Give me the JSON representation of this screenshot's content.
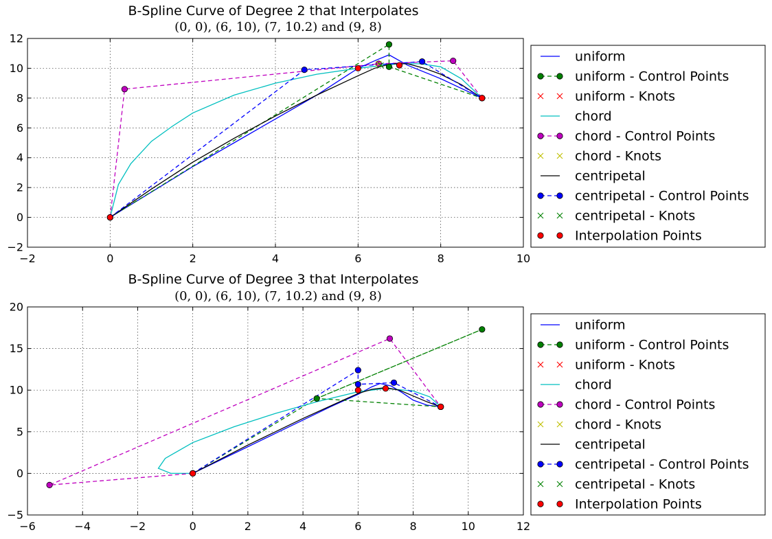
{
  "chart_data": [
    {
      "type": "line",
      "title": "B-Spline Curve of Degree 2 that Interpolates",
      "subtitle": "(0, 0), (6, 10), (7, 10.2) and (9, 8)",
      "xlabel": "",
      "ylabel": "",
      "xlim": [
        -2,
        10
      ],
      "ylim": [
        -2,
        12
      ],
      "xticks": [
        -2,
        0,
        2,
        4,
        6,
        8,
        10
      ],
      "yticks": [
        -2,
        0,
        2,
        4,
        6,
        8,
        10,
        12
      ],
      "grid": true,
      "legend_position": "outside-right",
      "series": [
        {
          "name": "uniform",
          "style": "line",
          "color": "#0000ff",
          "x": [
            0,
            1,
            2,
            3,
            4,
            5,
            6,
            6.4,
            6.75,
            7.2,
            8,
            9
          ],
          "y": [
            0,
            1.7,
            3.4,
            5.0,
            6.6,
            8.2,
            10.0,
            10.5,
            10.9,
            10.2,
            9.3,
            8.0
          ]
        },
        {
          "name": "uniform - Control Points",
          "style": "dashed-marker",
          "color": "#008000",
          "marker": "circle",
          "x": [
            0,
            6.75,
            6.75,
            9
          ],
          "y": [
            0,
            11.6,
            10.1,
            8.0
          ]
        },
        {
          "name": "uniform - Knots",
          "style": "marker",
          "color": "#ff0000",
          "marker": "x",
          "x": [],
          "y": []
        },
        {
          "name": "chord",
          "style": "line",
          "color": "#00bfbf",
          "x": [
            0,
            0.2,
            0.5,
            1,
            1.5,
            2,
            3,
            4,
            5,
            6,
            6.6,
            7,
            7.5,
            8,
            8.5,
            9
          ],
          "y": [
            0,
            2.2,
            3.6,
            5.1,
            6.1,
            7.0,
            8.2,
            9.0,
            9.6,
            10.0,
            10.2,
            10.3,
            10.3,
            10.1,
            9.3,
            8.0
          ]
        },
        {
          "name": "chord - Control Points",
          "style": "dashed-marker",
          "color": "#bf00bf",
          "marker": "circle",
          "x": [
            0,
            0.35,
            6.5,
            8.3,
            9
          ],
          "y": [
            0,
            8.6,
            10.3,
            10.5,
            8.0
          ]
        },
        {
          "name": "chord - Knots",
          "style": "marker",
          "color": "#bfbf00",
          "marker": "x",
          "x": [
            6.5
          ],
          "y": [
            10.3
          ]
        },
        {
          "name": "centripetal",
          "style": "line",
          "color": "#000000",
          "x": [
            0,
            1,
            2,
            3,
            4,
            5,
            6,
            6.4,
            6.8,
            7.2,
            7.6,
            8,
            8.5,
            9
          ],
          "y": [
            0,
            1.9,
            3.7,
            5.3,
            6.8,
            8.2,
            9.5,
            10.0,
            10.3,
            10.3,
            10.0,
            9.6,
            8.9,
            8.0
          ]
        },
        {
          "name": "centripetal - Control Points",
          "style": "dashed-marker",
          "color": "#0000ff",
          "marker": "circle",
          "x": [
            0,
            4.7,
            7.55,
            9
          ],
          "y": [
            0,
            9.9,
            10.45,
            8.0
          ]
        },
        {
          "name": "centripetal - Knots",
          "style": "marker",
          "color": "#008000",
          "marker": "x",
          "x": [
            6.55
          ],
          "y": [
            10.2
          ]
        },
        {
          "name": "Interpolation Points",
          "style": "marker",
          "color": "#ff0000",
          "marker": "circle",
          "x": [
            0,
            6,
            7,
            9
          ],
          "y": [
            0,
            10,
            10.2,
            8
          ]
        }
      ]
    },
    {
      "type": "line",
      "title": "B-Spline Curve of Degree 3 that Interpolates",
      "subtitle": "(0, 0), (6, 10), (7, 10.2) and (9, 8)",
      "xlabel": "",
      "ylabel": "",
      "xlim": [
        -6,
        12
      ],
      "ylim": [
        -5,
        20
      ],
      "xticks": [
        -6,
        -4,
        -2,
        0,
        2,
        4,
        6,
        8,
        10,
        12
      ],
      "yticks": [
        -5,
        0,
        5,
        10,
        15,
        20
      ],
      "grid": true,
      "legend_position": "outside-right",
      "series": [
        {
          "name": "uniform",
          "style": "line",
          "color": "#0000ff",
          "x": [
            0,
            1,
            2,
            3,
            4,
            5,
            6,
            6.5,
            6.8,
            7.2,
            7.6,
            8,
            8.5,
            9
          ],
          "y": [
            0,
            1.6,
            3.2,
            4.8,
            6.4,
            8.0,
            9.5,
            10.4,
            10.8,
            10.5,
            9.7,
            8.8,
            8.2,
            8.0
          ]
        },
        {
          "name": "uniform - Control Points",
          "style": "dashed-marker",
          "color": "#008000",
          "marker": "circle",
          "x": [
            0,
            4.5,
            10.5,
            4.5,
            9
          ],
          "y": [
            0,
            9.0,
            17.3,
            9.0,
            8.0
          ]
        },
        {
          "name": "uniform - Knots",
          "style": "marker",
          "color": "#ff0000",
          "marker": "x",
          "x": [],
          "y": []
        },
        {
          "name": "chord",
          "style": "line",
          "color": "#00bfbf",
          "x": [
            0,
            -0.8,
            -1.25,
            -1.0,
            0,
            1.5,
            3,
            4.5,
            6,
            7,
            8,
            8.6,
            9
          ],
          "y": [
            0,
            0.0,
            0.6,
            1.8,
            3.7,
            5.6,
            7.2,
            8.6,
            9.8,
            10.2,
            9.9,
            9.2,
            8.0
          ]
        },
        {
          "name": "chord - Control Points",
          "style": "dashed-marker",
          "color": "#bf00bf",
          "marker": "circle",
          "x": [
            0,
            -5.2,
            7.15,
            9
          ],
          "y": [
            0,
            -1.4,
            16.2,
            8.0
          ]
        },
        {
          "name": "chord - Knots",
          "style": "marker",
          "color": "#bfbf00",
          "marker": "x",
          "x": [],
          "y": []
        },
        {
          "name": "centripetal",
          "style": "line",
          "color": "#000000",
          "x": [
            0,
            1,
            2,
            3,
            4,
            5,
            6,
            6.5,
            7,
            7.5,
            8,
            8.5,
            9
          ],
          "y": [
            0,
            1.7,
            3.4,
            5.0,
            6.6,
            8.1,
            9.6,
            10.1,
            10.3,
            10.0,
            9.3,
            8.6,
            8.0
          ]
        },
        {
          "name": "centripetal - Control Points",
          "style": "dashed-marker",
          "color": "#0000ff",
          "marker": "circle",
          "x": [
            0,
            6,
            6,
            7.3,
            9
          ],
          "y": [
            0,
            12.4,
            10.7,
            10.9,
            8.0
          ]
        },
        {
          "name": "centripetal - Knots",
          "style": "marker",
          "color": "#008000",
          "marker": "x",
          "x": [],
          "y": []
        },
        {
          "name": "Interpolation Points",
          "style": "marker",
          "color": "#ff0000",
          "marker": "circle",
          "x": [
            0,
            6,
            7,
            9
          ],
          "y": [
            0,
            10,
            10.2,
            8
          ]
        }
      ]
    }
  ]
}
